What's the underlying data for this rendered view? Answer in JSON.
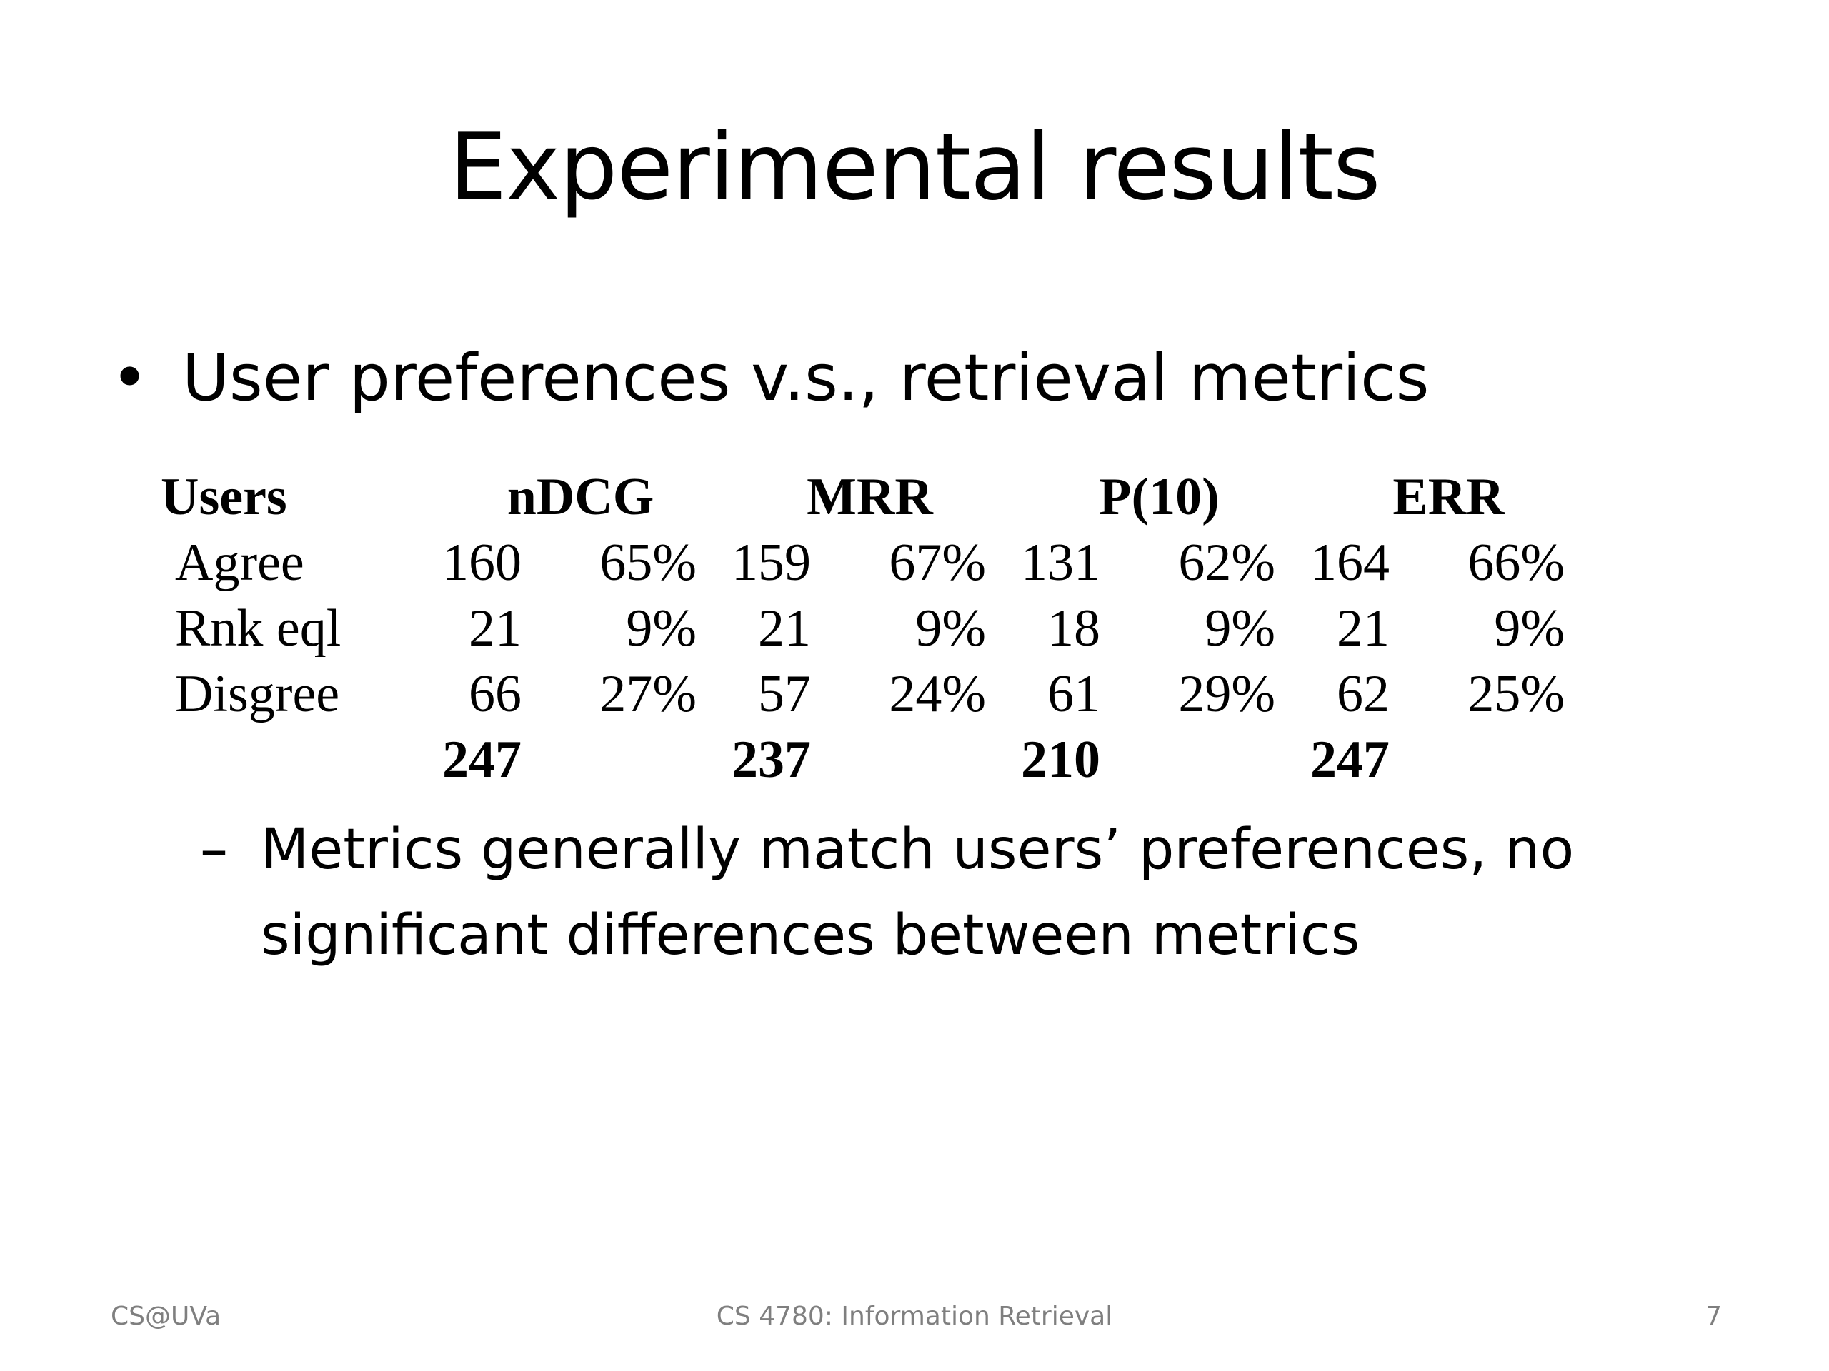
{
  "slide": {
    "title": "Experimental results",
    "bullet": {
      "marker": "•",
      "text": "User preferences v.s., retrieval metrics"
    },
    "table": {
      "header": {
        "users": "Users",
        "metrics": [
          "nDCG",
          "MRR",
          "P(10)",
          "ERR"
        ]
      },
      "rows": [
        {
          "label": "Agree",
          "cells": [
            {
              "count": "160",
              "pct": "65%"
            },
            {
              "count": "159",
              "pct": "67%"
            },
            {
              "count": "131",
              "pct": "62%"
            },
            {
              "count": "164",
              "pct": "66%"
            }
          ]
        },
        {
          "label": "Rnk eql",
          "cells": [
            {
              "count": "21",
              "pct": "9%"
            },
            {
              "count": "21",
              "pct": "9%"
            },
            {
              "count": "18",
              "pct": "9%"
            },
            {
              "count": "21",
              "pct": "9%"
            }
          ]
        },
        {
          "label": "Disgree",
          "cells": [
            {
              "count": "66",
              "pct": "27%"
            },
            {
              "count": "57",
              "pct": "24%"
            },
            {
              "count": "61",
              "pct": "29%"
            },
            {
              "count": "62",
              "pct": "25%"
            }
          ]
        }
      ],
      "totals": [
        "247",
        "237",
        "210",
        "247"
      ]
    },
    "sub_bullet": {
      "marker": "–",
      "line1": "Metrics generally match users’ preferences, no",
      "line2": "significant differences between metrics"
    },
    "footer": {
      "left": "CS@UVa",
      "center": "CS 4780: Information Retrieval",
      "right": "7"
    }
  }
}
